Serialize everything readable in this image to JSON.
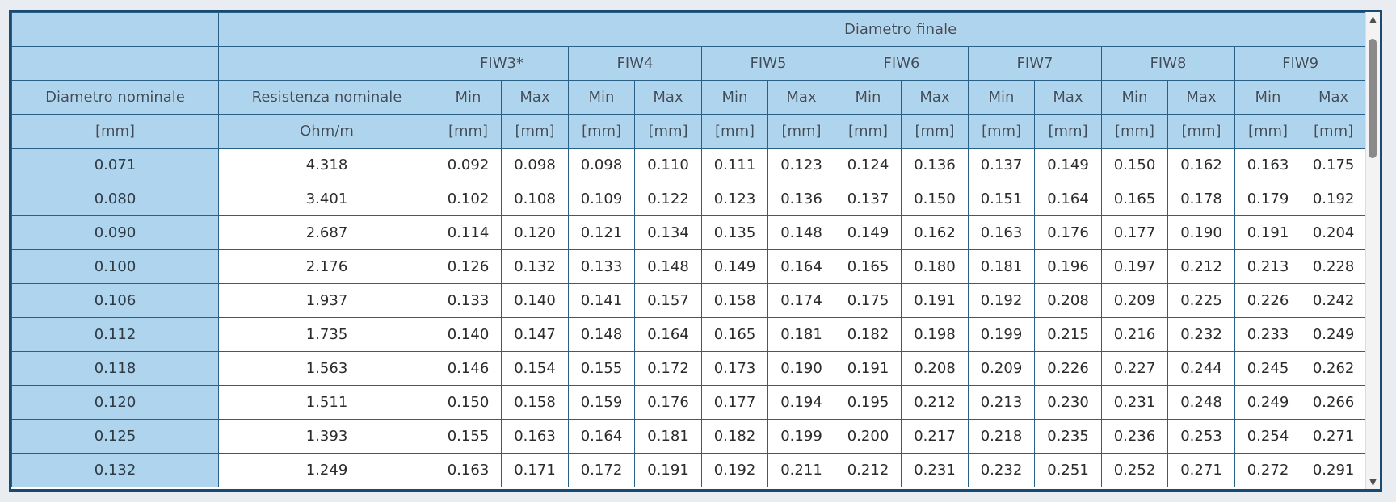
{
  "header": {
    "group_title": "Diametro finale",
    "col_nominal_diameter": "Diametro nominale",
    "col_nominal_resistance": "Resistenza nominale",
    "unit_mm": "[mm]",
    "unit_ohm": "Ohm/m",
    "min_label": "Min",
    "max_label": "Max",
    "grades": [
      "FIW3*",
      "FIW4",
      "FIW5",
      "FIW6",
      "FIW7",
      "FIW8",
      "FIW9"
    ]
  },
  "rows": [
    {
      "nominal": "0.071",
      "resistance": "4.318",
      "values": [
        "0.092",
        "0.098",
        "0.098",
        "0.110",
        "0.111",
        "0.123",
        "0.124",
        "0.136",
        "0.137",
        "0.149",
        "0.150",
        "0.162",
        "0.163",
        "0.175"
      ]
    },
    {
      "nominal": "0.080",
      "resistance": "3.401",
      "values": [
        "0.102",
        "0.108",
        "0.109",
        "0.122",
        "0.123",
        "0.136",
        "0.137",
        "0.150",
        "0.151",
        "0.164",
        "0.165",
        "0.178",
        "0.179",
        "0.192"
      ]
    },
    {
      "nominal": "0.090",
      "resistance": "2.687",
      "values": [
        "0.114",
        "0.120",
        "0.121",
        "0.134",
        "0.135",
        "0.148",
        "0.149",
        "0.162",
        "0.163",
        "0.176",
        "0.177",
        "0.190",
        "0.191",
        "0.204"
      ]
    },
    {
      "nominal": "0.100",
      "resistance": "2.176",
      "values": [
        "0.126",
        "0.132",
        "0.133",
        "0.148",
        "0.149",
        "0.164",
        "0.165",
        "0.180",
        "0.181",
        "0.196",
        "0.197",
        "0.212",
        "0.213",
        "0.228"
      ]
    },
    {
      "nominal": "0.106",
      "resistance": "1.937",
      "values": [
        "0.133",
        "0.140",
        "0.141",
        "0.157",
        "0.158",
        "0.174",
        "0.175",
        "0.191",
        "0.192",
        "0.208",
        "0.209",
        "0.225",
        "0.226",
        "0.242"
      ]
    },
    {
      "nominal": "0.112",
      "resistance": "1.735",
      "values": [
        "0.140",
        "0.147",
        "0.148",
        "0.164",
        "0.165",
        "0.181",
        "0.182",
        "0.198",
        "0.199",
        "0.215",
        "0.216",
        "0.232",
        "0.233",
        "0.249"
      ]
    },
    {
      "nominal": "0.118",
      "resistance": "1.563",
      "values": [
        "0.146",
        "0.154",
        "0.155",
        "0.172",
        "0.173",
        "0.190",
        "0.191",
        "0.208",
        "0.209",
        "0.226",
        "0.227",
        "0.244",
        "0.245",
        "0.262"
      ]
    },
    {
      "nominal": "0.120",
      "resistance": "1.511",
      "values": [
        "0.150",
        "0.158",
        "0.159",
        "0.176",
        "0.177",
        "0.194",
        "0.195",
        "0.212",
        "0.213",
        "0.230",
        "0.231",
        "0.248",
        "0.249",
        "0.266"
      ]
    },
    {
      "nominal": "0.125",
      "resistance": "1.393",
      "values": [
        "0.155",
        "0.163",
        "0.164",
        "0.181",
        "0.182",
        "0.199",
        "0.200",
        "0.217",
        "0.218",
        "0.235",
        "0.236",
        "0.253",
        "0.254",
        "0.271"
      ]
    },
    {
      "nominal": "0.132",
      "resistance": "1.249",
      "values": [
        "0.163",
        "0.171",
        "0.172",
        "0.191",
        "0.192",
        "0.211",
        "0.212",
        "0.231",
        "0.232",
        "0.251",
        "0.252",
        "0.271",
        "0.272",
        "0.291"
      ]
    }
  ],
  "scrollbar": {
    "up_icon": "triangle-up-icon",
    "down_icon": "triangle-down-icon"
  }
}
